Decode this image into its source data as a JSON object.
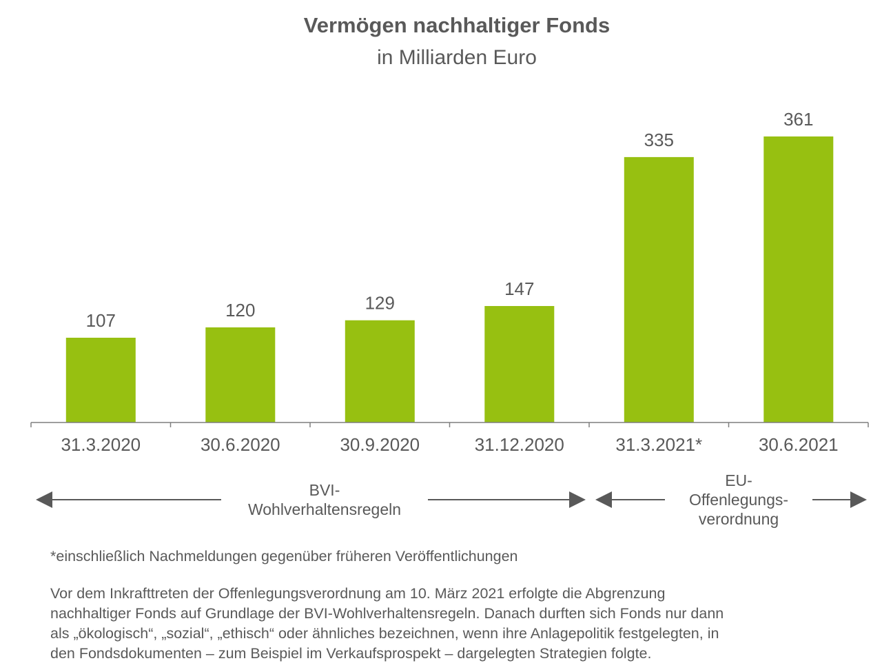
{
  "chart_data": {
    "type": "bar",
    "title": "Vermögen nachhaltiger Fonds",
    "subtitle": "in Milliarden Euro",
    "categories": [
      "31.3.2020",
      "30.6.2020",
      "30.9.2020",
      "31.12.2020",
      "31.3.2021*",
      "30.6.2021"
    ],
    "values": [
      107,
      120,
      129,
      147,
      335,
      361
    ],
    "value_labels": [
      "107",
      "120",
      "129",
      "147",
      "335",
      "361"
    ],
    "ylim": [
      0,
      361
    ],
    "xlabel": "",
    "ylabel": "",
    "grid": false,
    "bar_color": "#97c011",
    "periods": [
      {
        "lines": [
          "BVI-",
          "Wohlverhaltensregeln"
        ],
        "from_category": 0,
        "to_category": 3
      },
      {
        "lines": [
          "EU-",
          "Offenlegungs-",
          "verordnung"
        ],
        "from_category": 4,
        "to_category": 5
      }
    ]
  },
  "footnote": "*einschließlich Nachmeldungen gegenüber früheren Veröffentlichungen",
  "explanation": {
    "lines": [
      "Vor dem Inkrafttreten der Offenlegungsverordnung am 10. März 2021 erfolgte die Abgrenzung",
      "nachhaltiger Fonds auf Grundlage der BVI-Wohlverhaltensregeln. Danach durften sich Fonds nur dann",
      "als „ökologisch“, „sozial“, „ethisch“ oder ähnliches bezeichnen, wenn ihre Anlagepolitik festgelegten, in",
      "den Fondsdokumenten – zum Beispiel im Verkaufsprospekt – dargelegten Strategien folgte."
    ]
  },
  "colors": {
    "bar": "#97c011",
    "text": "#595959",
    "axis": "#7f7f7f",
    "arrow": "#595959"
  }
}
